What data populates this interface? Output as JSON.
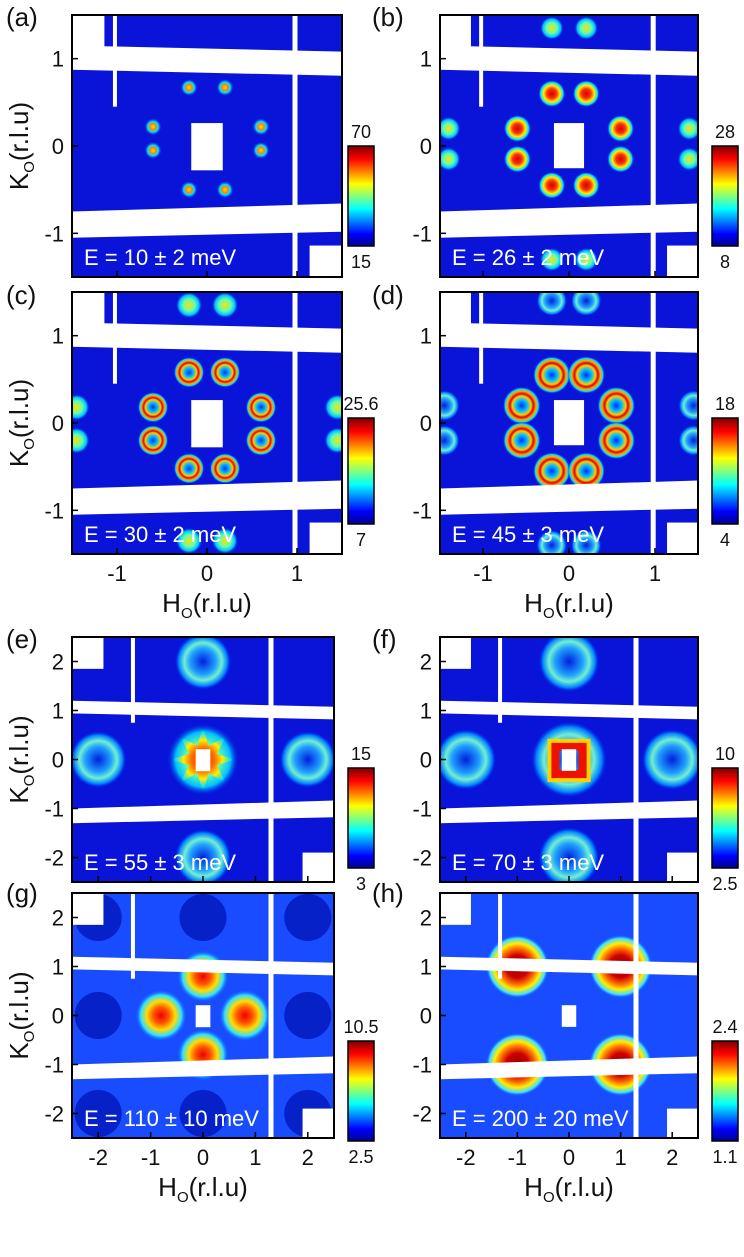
{
  "chart_data": [
    {
      "type": "heatmap",
      "panel_label": "(a)",
      "title": "E = 10 ± 2 meV",
      "xlabel": "",
      "ylabel": "K",
      "axis_subscript": "O",
      "axis_unit": "(r.l.u)",
      "xlim": [
        -1.5,
        1.5
      ],
      "ylim": [
        -1.5,
        1.5
      ],
      "x_ticks": [],
      "y_ticks": [
        "1",
        "0",
        "-1"
      ],
      "colorbar": {
        "min": 15,
        "max": 70,
        "min_label": "15",
        "max_label": "70"
      },
      "pattern": "spots",
      "features": [
        [
          -0.2,
          0.67
        ],
        [
          0.2,
          0.67
        ],
        [
          -0.2,
          -0.5
        ],
        [
          0.2,
          -0.5
        ],
        [
          -0.6,
          0.22
        ],
        [
          0.6,
          0.22
        ],
        [
          -0.6,
          -0.05
        ],
        [
          0.6,
          -0.05
        ]
      ]
    },
    {
      "type": "heatmap",
      "panel_label": "(b)",
      "title": "E = 26 ± 2 meV",
      "xlabel": "",
      "ylabel": "",
      "axis_subscript": "O",
      "axis_unit": "(r.l.u)",
      "xlim": [
        -1.5,
        1.5
      ],
      "ylim": [
        -1.5,
        1.5
      ],
      "x_ticks": [],
      "y_ticks": [
        "1",
        "0",
        "-1"
      ],
      "colorbar": {
        "min": 8,
        "max": 28,
        "min_label": "8",
        "max_label": "28"
      },
      "pattern": "blobs",
      "features": [
        [
          -0.2,
          0.6
        ],
        [
          0.2,
          0.6
        ],
        [
          -0.6,
          0.2
        ],
        [
          0.6,
          0.2
        ],
        [
          -0.6,
          -0.15
        ],
        [
          0.6,
          -0.15
        ],
        [
          -0.2,
          -0.45
        ],
        [
          0.2,
          -0.45
        ]
      ]
    },
    {
      "type": "heatmap",
      "panel_label": "(c)",
      "title": "E = 30 ± 2 meV",
      "xlabel": "",
      "ylabel": "K",
      "axis_subscript": "O",
      "axis_unit": "(r.l.u)",
      "xlim": [
        -1.5,
        1.5
      ],
      "ylim": [
        -1.5,
        1.5
      ],
      "x_ticks": [
        "-1",
        "0",
        "1"
      ],
      "y_ticks": [
        "1",
        "0",
        "-1"
      ],
      "colorbar": {
        "min": 7,
        "max": 25.6,
        "min_label": "7",
        "max_label": "25.6"
      },
      "pattern": "rings",
      "features": [
        [
          -0.2,
          0.58
        ],
        [
          0.2,
          0.58
        ],
        [
          -0.6,
          0.18
        ],
        [
          0.6,
          0.18
        ],
        [
          -0.6,
          -0.2
        ],
        [
          0.6,
          -0.2
        ],
        [
          -0.2,
          -0.52
        ],
        [
          0.2,
          -0.52
        ]
      ]
    },
    {
      "type": "heatmap",
      "panel_label": "(d)",
      "title": "E = 45 ± 3 meV",
      "xlabel": "H",
      "ylabel": "",
      "axis_subscript": "O",
      "axis_unit": "(r.l.u)",
      "xlim": [
        -1.5,
        1.5
      ],
      "ylim": [
        -1.5,
        1.5
      ],
      "x_ticks": [
        "-1",
        "0",
        "1"
      ],
      "y_ticks": [
        "1",
        "0",
        "-1"
      ],
      "colorbar": {
        "min": 4,
        "max": 18,
        "min_label": "4",
        "max_label": "18"
      },
      "pattern": "bigrings",
      "features": [
        [
          -0.2,
          0.55
        ],
        [
          0.2,
          0.55
        ],
        [
          -0.55,
          0.2
        ],
        [
          0.55,
          0.2
        ],
        [
          -0.55,
          -0.2
        ],
        [
          0.55,
          -0.2
        ],
        [
          -0.2,
          -0.55
        ],
        [
          0.2,
          -0.55
        ]
      ]
    },
    {
      "type": "heatmap",
      "panel_label": "(e)",
      "title": "E = 55 ± 3 meV",
      "xlabel": "",
      "ylabel": "K",
      "axis_subscript": "O",
      "axis_unit": "(r.l.u)",
      "xlim": [
        -2.5,
        2.5
      ],
      "ylim": [
        -2.5,
        2.5
      ],
      "x_ticks": [],
      "y_ticks": [
        "2",
        "1",
        "0",
        "-1",
        "-2"
      ],
      "colorbar": {
        "min": 3,
        "max": 15,
        "min_label": "3",
        "max_label": "15"
      },
      "pattern": "star",
      "features": [
        [
          0,
          0
        ]
      ]
    },
    {
      "type": "heatmap",
      "panel_label": "(f)",
      "title": "E = 70 ± 3 meV",
      "xlabel": "",
      "ylabel": "",
      "axis_subscript": "O",
      "axis_unit": "(r.l.u)",
      "xlim": [
        -2.5,
        2.5
      ],
      "ylim": [
        -2.5,
        2.5
      ],
      "x_ticks": [],
      "y_ticks": [
        "2",
        "1",
        "0",
        "-1",
        "-2"
      ],
      "colorbar": {
        "min": 2.5,
        "max": 10,
        "min_label": "2.5",
        "max_label": "10"
      },
      "pattern": "square",
      "features": [
        [
          0,
          0
        ]
      ]
    },
    {
      "type": "heatmap",
      "panel_label": "(g)",
      "title": "E = 110 ± 10 meV",
      "xlabel": "H",
      "ylabel": "K",
      "axis_subscript": "O",
      "axis_unit": "(r.l.u)",
      "xlim": [
        -2.5,
        2.5
      ],
      "ylim": [
        -2.5,
        2.5
      ],
      "x_ticks": [
        "-2",
        "-1",
        "0",
        "1",
        "2"
      ],
      "y_ticks": [
        "2",
        "1",
        "0",
        "-1",
        "-2"
      ],
      "colorbar": {
        "min": 2.5,
        "max": 10.5,
        "min_label": "2.5",
        "max_label": "10.5"
      },
      "pattern": "cross",
      "features": [
        [
          0,
          0.8
        ],
        [
          0,
          -0.8
        ],
        [
          -0.8,
          0
        ],
        [
          0.8,
          0
        ]
      ]
    },
    {
      "type": "heatmap",
      "panel_label": "(h)",
      "title": "E = 200 ± 20 meV",
      "xlabel": "H",
      "ylabel": "",
      "axis_subscript": "O",
      "axis_unit": "(r.l.u)",
      "xlim": [
        -2.5,
        2.5
      ],
      "ylim": [
        -2.5,
        2.5
      ],
      "x_ticks": [
        "-2",
        "-1",
        "0",
        "1",
        "2"
      ],
      "y_ticks": [
        "2",
        "1",
        "0",
        "-1",
        "-2"
      ],
      "colorbar": {
        "min": 1.1,
        "max": 2.4,
        "min_label": "1.1",
        "max_label": "2.4"
      },
      "pattern": "corners",
      "features": [
        [
          -1,
          1
        ],
        [
          1,
          1
        ],
        [
          -1,
          -1
        ],
        [
          1,
          -1
        ]
      ]
    }
  ]
}
